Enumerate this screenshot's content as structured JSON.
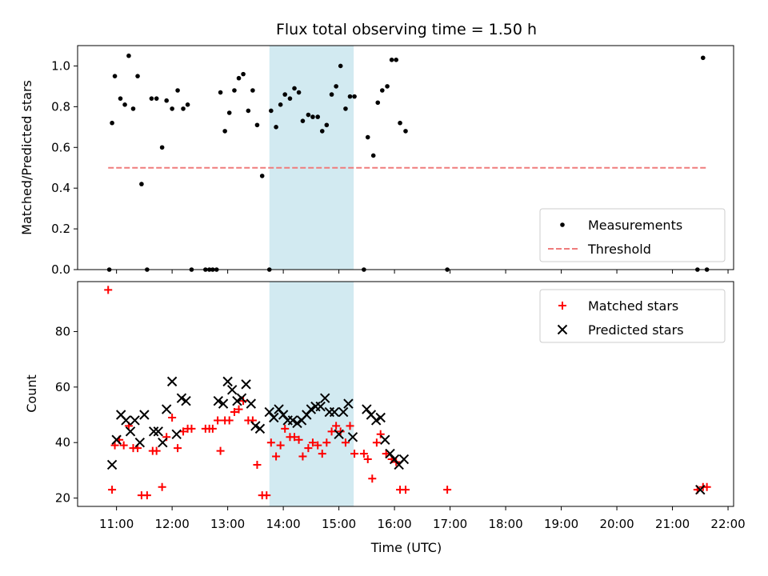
{
  "chart_data": [
    {
      "type": "scatter",
      "title": "Flux total observing time = 1.50 h",
      "xlabel": "",
      "ylabel": "Matched/Predicted stars",
      "ylim": [
        0,
        1.1
      ],
      "yticks": [
        "0.0",
        "0.2",
        "0.4",
        "0.6",
        "0.8",
        "1.0"
      ],
      "xlim_hours": [
        10.3,
        22.1
      ],
      "highlight_span": [
        "13:45",
        "15:16"
      ],
      "legend": {
        "placement": "lower right"
      },
      "series": [
        {
          "name": "Measurements",
          "marker": "dot",
          "color": "#000000",
          "points": [
            [
              10.87,
              0.0
            ],
            [
              10.92,
              0.72
            ],
            [
              10.97,
              0.95
            ],
            [
              11.07,
              0.84
            ],
            [
              11.15,
              0.81
            ],
            [
              11.22,
              1.05
            ],
            [
              11.3,
              0.79
            ],
            [
              11.38,
              0.95
            ],
            [
              11.45,
              0.42
            ],
            [
              11.55,
              0.0
            ],
            [
              11.63,
              0.84
            ],
            [
              11.72,
              0.84
            ],
            [
              11.82,
              0.6
            ],
            [
              11.9,
              0.83
            ],
            [
              12.0,
              0.79
            ],
            [
              12.1,
              0.88
            ],
            [
              12.2,
              0.79
            ],
            [
              12.28,
              0.81
            ],
            [
              12.35,
              0.0
            ],
            [
              12.6,
              0.0
            ],
            [
              12.67,
              0.0
            ],
            [
              12.73,
              0.0
            ],
            [
              12.8,
              0.0
            ],
            [
              12.87,
              0.87
            ],
            [
              12.95,
              0.68
            ],
            [
              13.03,
              0.77
            ],
            [
              13.12,
              0.88
            ],
            [
              13.2,
              0.94
            ],
            [
              13.28,
              0.96
            ],
            [
              13.37,
              0.78
            ],
            [
              13.45,
              0.88
            ],
            [
              13.53,
              0.71
            ],
            [
              13.62,
              0.46
            ],
            [
              13.75,
              0.0
            ],
            [
              13.78,
              0.78
            ],
            [
              13.87,
              0.7
            ],
            [
              13.95,
              0.81
            ],
            [
              14.03,
              0.86
            ],
            [
              14.12,
              0.84
            ],
            [
              14.2,
              0.89
            ],
            [
              14.28,
              0.87
            ],
            [
              14.35,
              0.73
            ],
            [
              14.45,
              0.76
            ],
            [
              14.53,
              0.75
            ],
            [
              14.62,
              0.75
            ],
            [
              14.7,
              0.68
            ],
            [
              14.78,
              0.71
            ],
            [
              14.87,
              0.86
            ],
            [
              14.95,
              0.9
            ],
            [
              15.03,
              1.0
            ],
            [
              15.12,
              0.79
            ],
            [
              15.2,
              0.85
            ],
            [
              15.28,
              0.85
            ],
            [
              15.45,
              0.0
            ],
            [
              15.52,
              0.65
            ],
            [
              15.62,
              0.56
            ],
            [
              15.7,
              0.82
            ],
            [
              15.78,
              0.88
            ],
            [
              15.87,
              0.9
            ],
            [
              15.95,
              1.03
            ],
            [
              16.03,
              1.03
            ],
            [
              16.1,
              0.72
            ],
            [
              16.2,
              0.68
            ],
            [
              16.95,
              0.0
            ],
            [
              21.45,
              0.0
            ],
            [
              21.55,
              1.04
            ],
            [
              21.62,
              0.0
            ]
          ]
        },
        {
          "name": "Threshold",
          "marker": "dashed-line",
          "color": "#ef7c7c",
          "y": 0.5,
          "x_range": [
            10.85,
            21.62
          ]
        }
      ]
    },
    {
      "type": "scatter",
      "title": "",
      "xlabel": "Time (UTC)",
      "ylabel": "Count",
      "ylim": [
        17,
        98
      ],
      "yticks": [
        "20",
        "40",
        "60",
        "80"
      ],
      "xticks": [
        "11:00",
        "12:00",
        "13:00",
        "14:00",
        "15:00",
        "16:00",
        "17:00",
        "18:00",
        "19:00",
        "20:00",
        "21:00",
        "22:00"
      ],
      "xlim_hours": [
        10.3,
        22.1
      ],
      "highlight_span": [
        "13:45",
        "15:16"
      ],
      "legend": {
        "placement": "upper right"
      },
      "series": [
        {
          "name": "Matched stars",
          "marker": "plus",
          "color": "#ff0000",
          "points": [
            [
              10.85,
              95
            ],
            [
              10.92,
              23
            ],
            [
              10.97,
              39
            ],
            [
              11.05,
              41
            ],
            [
              11.13,
              39
            ],
            [
              11.22,
              46
            ],
            [
              11.3,
              38
            ],
            [
              11.38,
              38
            ],
            [
              11.45,
              21
            ],
            [
              11.55,
              21
            ],
            [
              11.65,
              37
            ],
            [
              11.72,
              37
            ],
            [
              11.82,
              24
            ],
            [
              11.9,
              42
            ],
            [
              12.0,
              49
            ],
            [
              12.1,
              38
            ],
            [
              12.2,
              44
            ],
            [
              12.28,
              45
            ],
            [
              12.35,
              45
            ],
            [
              12.6,
              45
            ],
            [
              12.67,
              45
            ],
            [
              12.73,
              45
            ],
            [
              12.82,
              48
            ],
            [
              12.87,
              37
            ],
            [
              12.95,
              48
            ],
            [
              13.03,
              48
            ],
            [
              13.12,
              51
            ],
            [
              13.2,
              52
            ],
            [
              13.28,
              55
            ],
            [
              13.37,
              48
            ],
            [
              13.45,
              48
            ],
            [
              13.53,
              32
            ],
            [
              13.62,
              21
            ],
            [
              13.7,
              21
            ],
            [
              13.78,
              40
            ],
            [
              13.87,
              35
            ],
            [
              13.95,
              39
            ],
            [
              14.03,
              45
            ],
            [
              14.12,
              42
            ],
            [
              14.2,
              42
            ],
            [
              14.28,
              41
            ],
            [
              14.35,
              35
            ],
            [
              14.45,
              38
            ],
            [
              14.53,
              40
            ],
            [
              14.62,
              39
            ],
            [
              14.7,
              36
            ],
            [
              14.78,
              40
            ],
            [
              14.87,
              44
            ],
            [
              14.95,
              46
            ],
            [
              15.03,
              44
            ],
            [
              15.12,
              40
            ],
            [
              15.2,
              46
            ],
            [
              15.28,
              36
            ],
            [
              15.45,
              36
            ],
            [
              15.52,
              34
            ],
            [
              15.6,
              27
            ],
            [
              15.68,
              40
            ],
            [
              15.75,
              43
            ],
            [
              15.85,
              36
            ],
            [
              15.95,
              34
            ],
            [
              16.03,
              33
            ],
            [
              16.1,
              23
            ],
            [
              16.2,
              23
            ],
            [
              16.95,
              23
            ],
            [
              21.45,
              23
            ],
            [
              21.55,
              24
            ],
            [
              21.62,
              24
            ]
          ]
        },
        {
          "name": "Predicted stars",
          "marker": "x",
          "color": "#000000",
          "points": [
            [
              10.92,
              32
            ],
            [
              11.0,
              41
            ],
            [
              11.08,
              50
            ],
            [
              11.17,
              48
            ],
            [
              11.25,
              44
            ],
            [
              11.33,
              48
            ],
            [
              11.42,
              40
            ],
            [
              11.5,
              50
            ],
            [
              11.67,
              44
            ],
            [
              11.75,
              44
            ],
            [
              11.83,
              40
            ],
            [
              11.9,
              52
            ],
            [
              12.0,
              62
            ],
            [
              12.08,
              43
            ],
            [
              12.17,
              56
            ],
            [
              12.25,
              55
            ],
            [
              12.83,
              55
            ],
            [
              12.92,
              54
            ],
            [
              13.0,
              62
            ],
            [
              13.08,
              59
            ],
            [
              13.17,
              55
            ],
            [
              13.25,
              56
            ],
            [
              13.33,
              61
            ],
            [
              13.42,
              54
            ],
            [
              13.5,
              46
            ],
            [
              13.58,
              45
            ],
            [
              13.75,
              51
            ],
            [
              13.83,
              49
            ],
            [
              13.92,
              52
            ],
            [
              14.0,
              50
            ],
            [
              14.08,
              48
            ],
            [
              14.17,
              48
            ],
            [
              14.25,
              47
            ],
            [
              14.33,
              48
            ],
            [
              14.42,
              50
            ],
            [
              14.5,
              52
            ],
            [
              14.58,
              53
            ],
            [
              14.67,
              53
            ],
            [
              14.75,
              56
            ],
            [
              14.83,
              51
            ],
            [
              14.92,
              51
            ],
            [
              15.0,
              43
            ],
            [
              15.08,
              51
            ],
            [
              15.17,
              54
            ],
            [
              15.25,
              42
            ],
            [
              15.5,
              52
            ],
            [
              15.58,
              50
            ],
            [
              15.67,
              48
            ],
            [
              15.75,
              49
            ],
            [
              15.83,
              41
            ],
            [
              15.92,
              36
            ],
            [
              16.0,
              34
            ],
            [
              16.08,
              32
            ],
            [
              16.17,
              34
            ],
            [
              21.5,
              23
            ]
          ]
        }
      ]
    }
  ]
}
